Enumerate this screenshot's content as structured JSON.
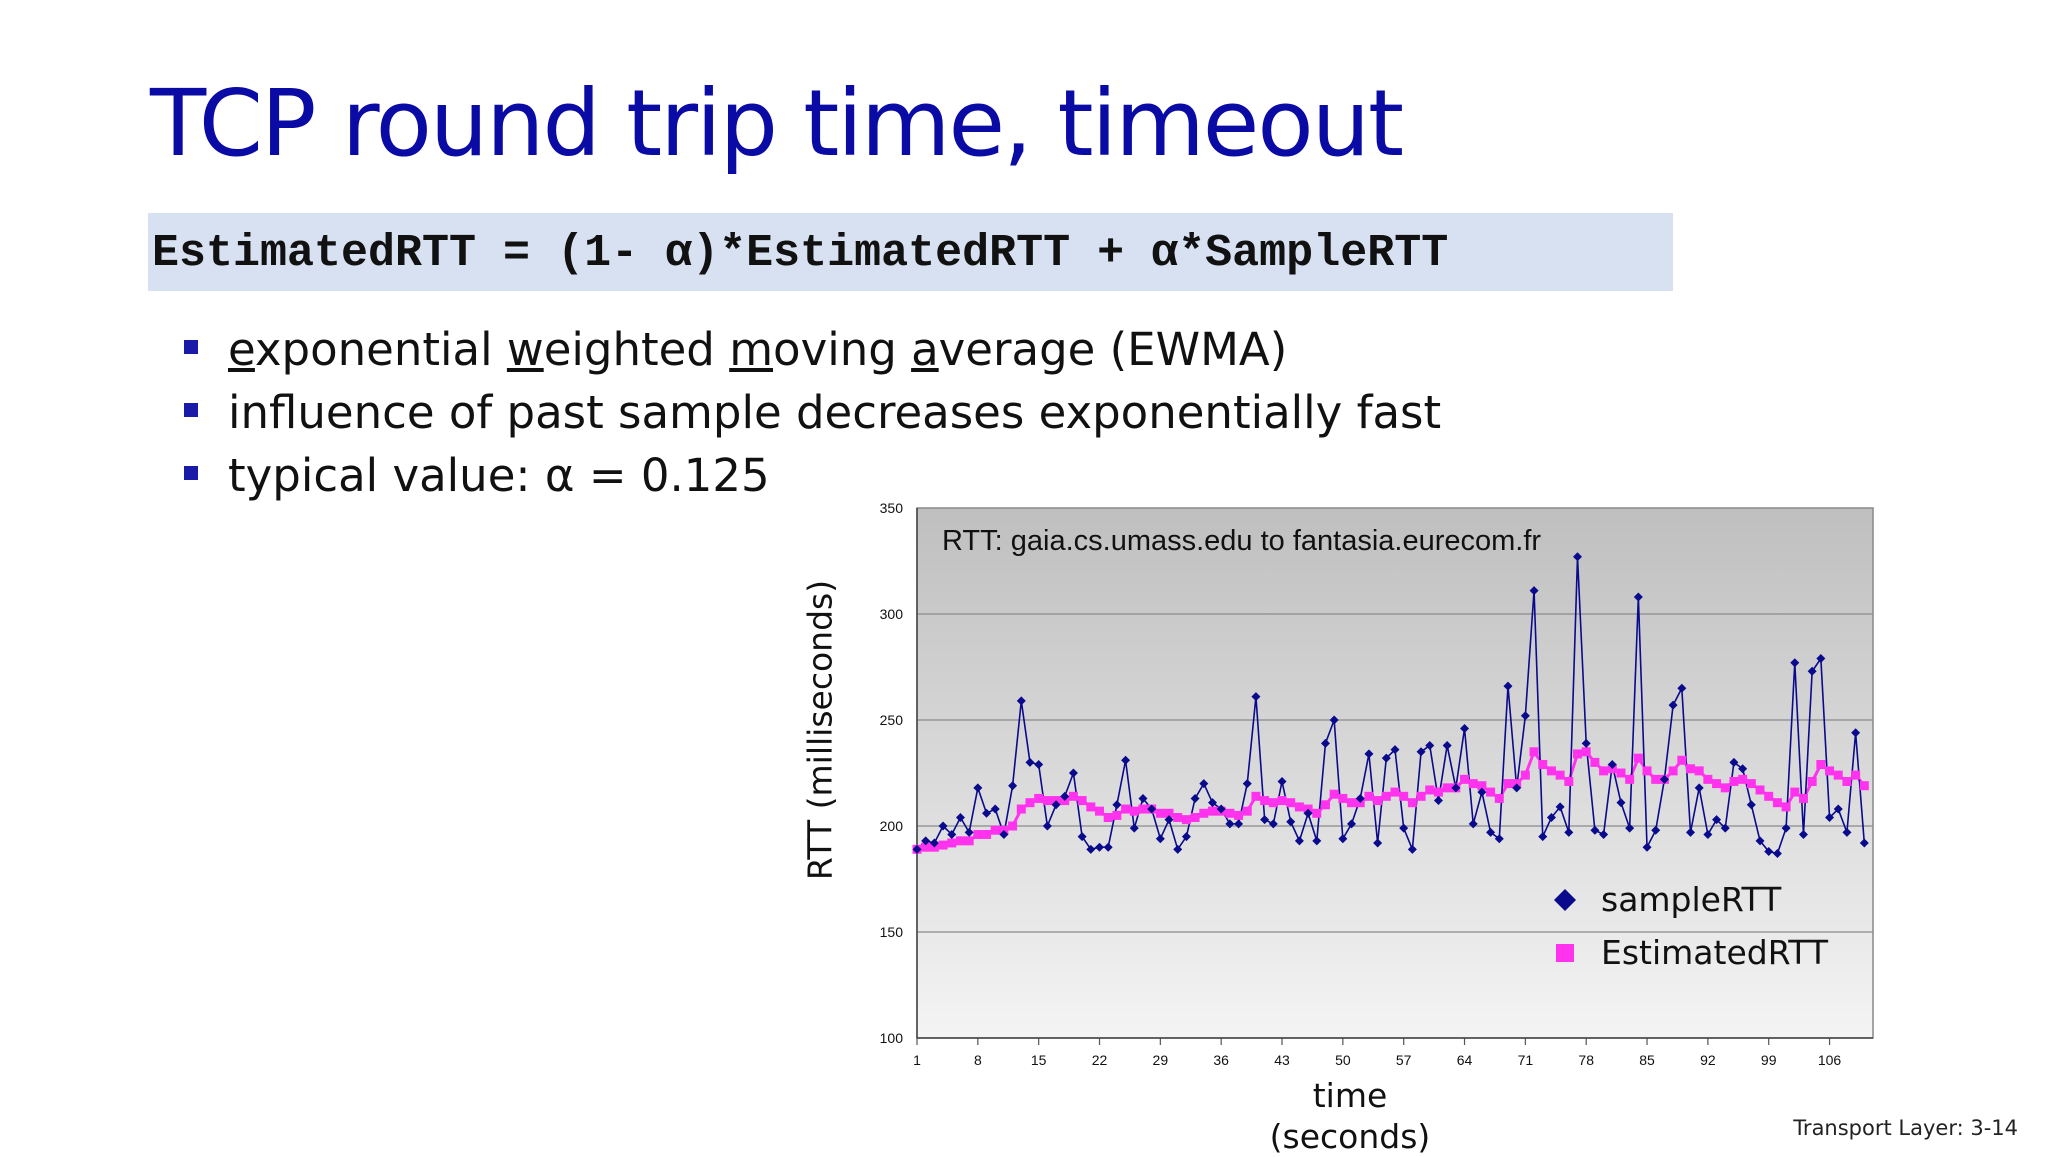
{
  "slide": {
    "title": "TCP round trip time, timeout",
    "formula": "EstimatedRTT = (1- α)*EstimatedRTT + α*SampleRTT",
    "bullet1_parts": [
      "e",
      "xponential ",
      "w",
      "eighted ",
      "m",
      "oving ",
      "a",
      "verage (EWMA)"
    ],
    "bullet2": "influence of past sample decreases exponentially fast",
    "bullet3_label": "typical value: ",
    "bullet3_symbol": "α",
    "bullet3_value": " = 0.125",
    "footer": "Transport Layer: 3-14"
  },
  "chart_data": {
    "type": "line",
    "title": "RTT: gaia.cs.umass.edu to fantasia.eurecom.fr",
    "xlabel_line1": "time",
    "xlabel_line2": "(seconds)",
    "ylabel": "RTT (milliseconds)",
    "ylim": [
      100,
      350
    ],
    "yticks": [
      100,
      150,
      200,
      250,
      300,
      350
    ],
    "xticks": [
      1,
      8,
      15,
      22,
      29,
      36,
      43,
      50,
      57,
      64,
      71,
      78,
      85,
      92,
      99,
      106
    ],
    "xlim": [
      1,
      111
    ],
    "grid": true,
    "legend_position": "bottom-right",
    "series": [
      {
        "name": "sampleRTT",
        "color": "#0a0a8c",
        "marker": "diamond",
        "values": [
          189,
          193,
          192,
          200,
          196,
          204,
          197,
          218,
          206,
          208,
          196,
          219,
          259,
          230,
          229,
          200,
          210,
          214,
          225,
          195,
          189,
          190,
          190,
          210,
          231,
          199,
          213,
          208,
          194,
          203,
          189,
          195,
          213,
          220,
          211,
          208,
          201,
          201,
          220,
          261,
          203,
          201,
          221,
          202,
          193,
          206,
          193,
          239,
          250,
          194,
          201,
          213,
          234,
          192,
          232,
          236,
          199,
          189,
          235,
          238,
          212,
          238,
          218,
          246,
          201,
          216,
          197,
          194,
          266,
          218,
          252,
          311,
          195,
          204,
          209,
          197,
          327,
          239,
          198,
          196,
          229,
          211,
          199,
          308,
          190,
          198,
          222,
          257,
          265,
          197,
          218,
          196,
          203,
          199,
          230,
          227,
          210,
          193,
          188,
          187,
          199,
          277,
          196,
          273,
          279,
          204,
          208,
          197,
          244,
          192
        ]
      },
      {
        "name": "EstimatedRTT",
        "color": "#ff33ee",
        "marker": "square",
        "values": [
          189,
          190,
          190,
          191,
          192,
          193,
          193,
          196,
          196,
          198,
          198,
          200,
          208,
          211,
          213,
          212,
          212,
          212,
          214,
          212,
          209,
          207,
          204,
          205,
          208,
          207,
          208,
          208,
          206,
          206,
          204,
          203,
          204,
          206,
          207,
          207,
          206,
          205,
          207,
          214,
          212,
          211,
          212,
          211,
          209,
          208,
          206,
          210,
          215,
          213,
          211,
          211,
          214,
          212,
          214,
          216,
          214,
          211,
          214,
          217,
          216,
          218,
          218,
          222,
          220,
          219,
          216,
          213,
          220,
          220,
          224,
          235,
          229,
          226,
          224,
          221,
          234,
          235,
          230,
          226,
          227,
          225,
          222,
          232,
          226,
          222,
          222,
          226,
          231,
          227,
          226,
          222,
          220,
          218,
          221,
          222,
          220,
          217,
          214,
          211,
          209,
          216,
          213,
          221,
          229,
          226,
          224,
          221,
          224,
          219
        ]
      }
    ]
  }
}
